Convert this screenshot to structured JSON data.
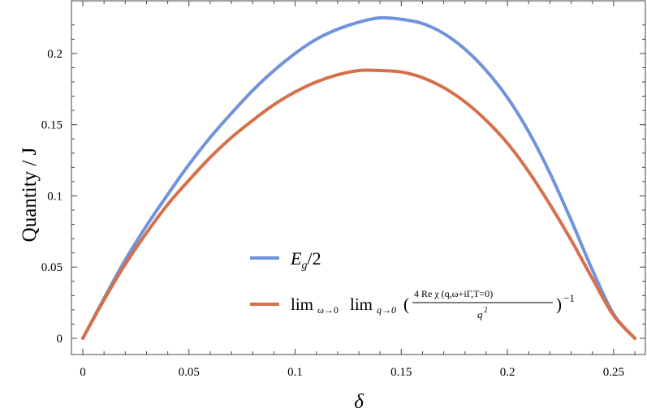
{
  "chart_data": {
    "type": "line",
    "xlabel": "δ",
    "ylabel": "Quantity / J",
    "xlim": [
      0,
      0.26
    ],
    "ylim": [
      0,
      0.225
    ],
    "x_ticks": [
      0,
      0.05,
      0.1,
      0.15,
      0.2,
      0.25
    ],
    "x_tick_labels": [
      "0",
      "0.05",
      "0.1",
      "0.15",
      "0.2",
      "0.25"
    ],
    "y_ticks": [
      0,
      0.05,
      0.1,
      0.15,
      0.2
    ],
    "y_tick_labels": [
      "0",
      "0.05",
      "0.1",
      "0.15",
      "0.2"
    ],
    "grid": false,
    "legend_position": "bottom-center",
    "series": [
      {
        "legend": "E_g/2",
        "color": "#6f93dc",
        "x": [
          0,
          0.01,
          0.02,
          0.03,
          0.04,
          0.05,
          0.06,
          0.07,
          0.08,
          0.09,
          0.1,
          0.11,
          0.12,
          0.13,
          0.14,
          0.15,
          0.16,
          0.17,
          0.18,
          0.19,
          0.2,
          0.21,
          0.22,
          0.23,
          0.24,
          0.25,
          0.26
        ],
        "y": [
          0,
          0.028,
          0.055,
          0.079,
          0.101,
          0.122,
          0.141,
          0.158,
          0.174,
          0.188,
          0.2,
          0.21,
          0.217,
          0.222,
          0.225,
          0.224,
          0.221,
          0.214,
          0.203,
          0.188,
          0.169,
          0.145,
          0.116,
          0.083,
          0.048,
          0.017,
          0
        ]
      },
      {
        "legend": "lim_{ω→0} lim_{q→0} ( 4 Re χ(q, ω+iΓ, T=0) / q² )^{-1}",
        "color": "#d6704b",
        "x": [
          0,
          0.01,
          0.02,
          0.03,
          0.04,
          0.05,
          0.06,
          0.07,
          0.08,
          0.09,
          0.1,
          0.11,
          0.12,
          0.13,
          0.14,
          0.15,
          0.16,
          0.17,
          0.18,
          0.19,
          0.2,
          0.21,
          0.22,
          0.23,
          0.24,
          0.25,
          0.26
        ],
        "y": [
          0,
          0.027,
          0.052,
          0.074,
          0.094,
          0.111,
          0.127,
          0.141,
          0.153,
          0.164,
          0.173,
          0.18,
          0.185,
          0.188,
          0.188,
          0.187,
          0.183,
          0.176,
          0.166,
          0.153,
          0.137,
          0.117,
          0.094,
          0.069,
          0.042,
          0.016,
          0
        ]
      }
    ]
  },
  "legend": {
    "blue": {
      "main": "E",
      "sub": "g",
      "tail": "/2"
    },
    "orange": {
      "lim1": "lim",
      "sub1": "ω→0",
      "lim2": "lim",
      "sub2": "q→0",
      "open": "(",
      "numerator": "4 Re  χ (q,ω+iΓ,T=0)",
      "denominator": "q",
      "denominator_exp": "2",
      "close": ")",
      "exponent": "−1"
    }
  }
}
